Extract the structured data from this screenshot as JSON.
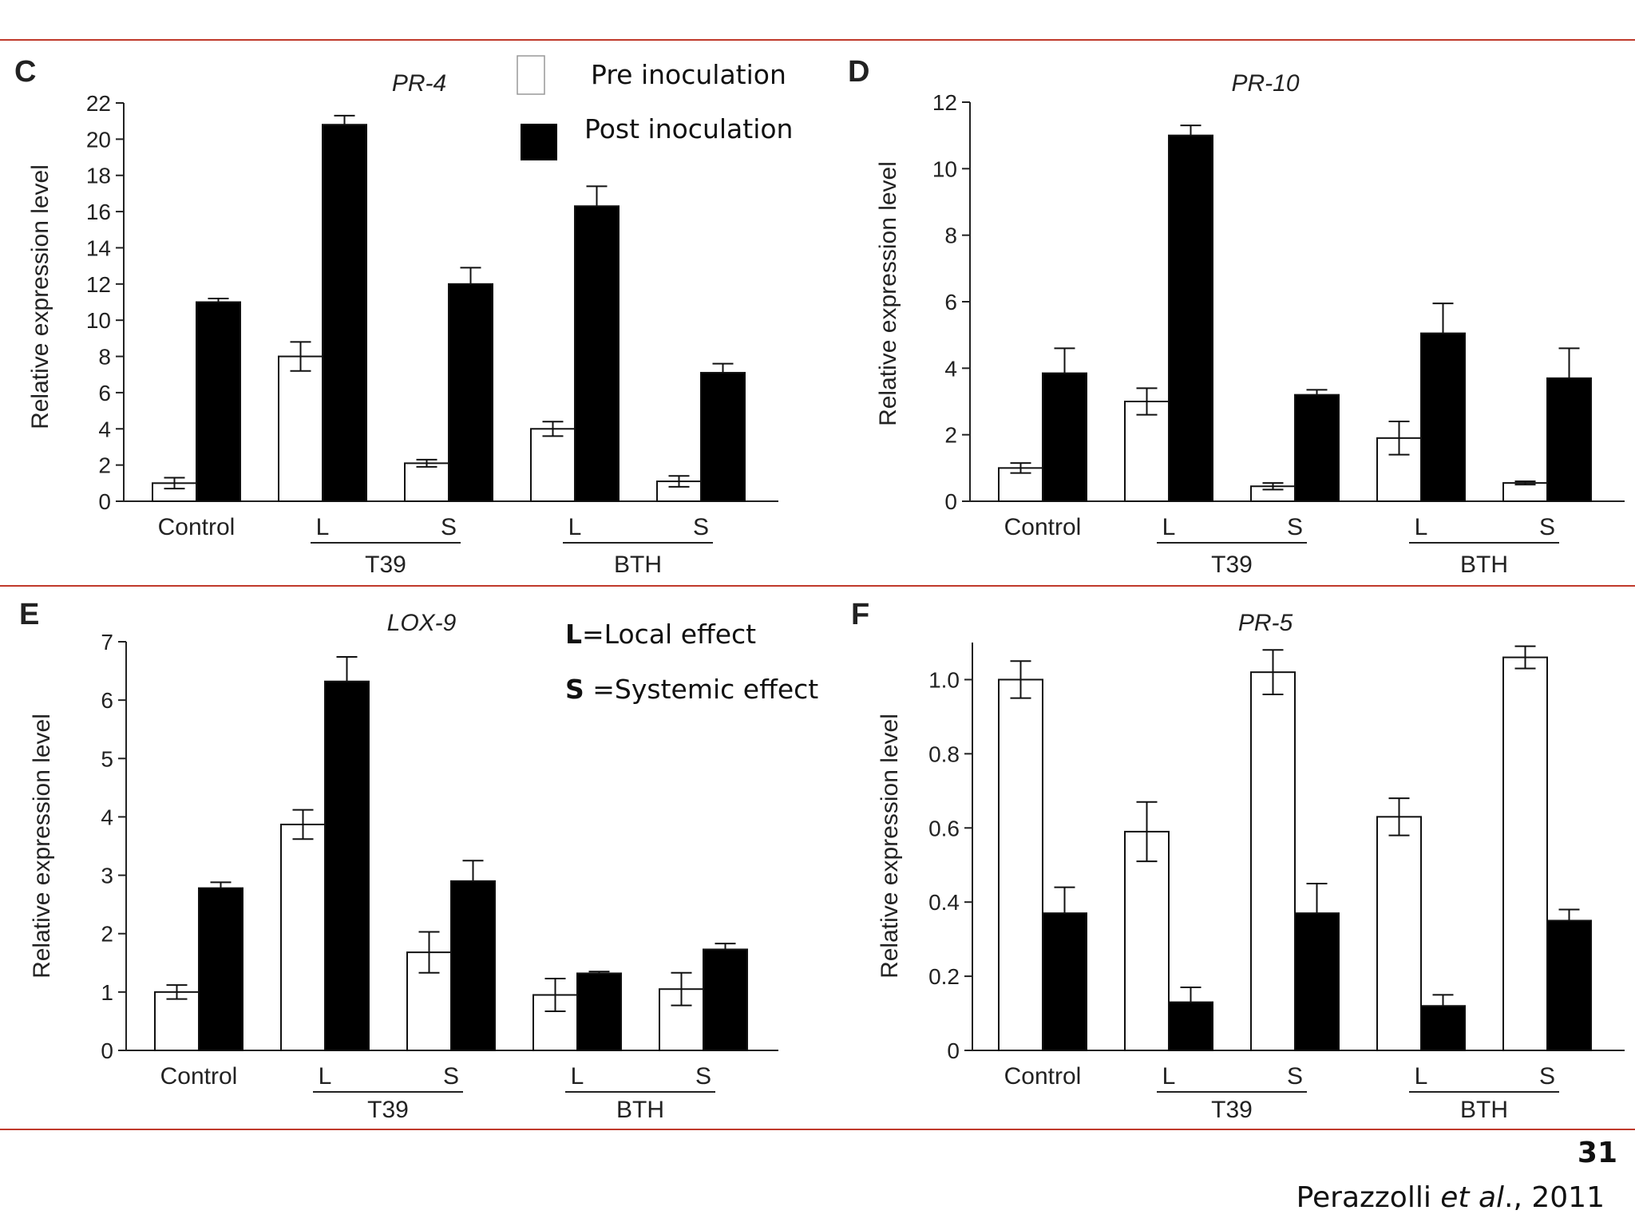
{
  "slide": {
    "page_number": "31",
    "citation_author": "Perazzolli ",
    "citation_etal": "et al",
    "citation_year": "., 2011"
  },
  "legend": {
    "pre_label": "Pre inoculation",
    "post_label": "Post inoculation"
  },
  "note": {
    "l_letter": "L",
    "l_text": "=Local effect",
    "s_letter": "S",
    "s_text": " =Systemic effect"
  },
  "colors": {
    "pre": "#ffffff",
    "post": "#000000",
    "rule": "#c0392b"
  },
  "chart_data": [
    {
      "type": "bar",
      "panel": "C",
      "title": "PR-4",
      "ylabel": "Relative expression level",
      "ylim": [
        0,
        22
      ],
      "yticks": [
        0,
        2,
        4,
        6,
        8,
        10,
        12,
        14,
        16,
        18,
        20,
        22
      ],
      "ytick_labels": [
        "0",
        "2",
        "4",
        "6",
        "8",
        "10",
        "12",
        "14",
        "16",
        "18",
        "20",
        "22"
      ],
      "categories": [
        "Control",
        "L",
        "S",
        "L",
        "S"
      ],
      "groups": [
        {
          "label": "T39",
          "from": 1,
          "to": 2
        },
        {
          "label": "BTH",
          "from": 3,
          "to": 4
        }
      ],
      "series": [
        {
          "values": [
            1.0,
            8.0,
            2.1,
            4.0,
            1.1
          ],
          "errors": [
            0.3,
            0.8,
            0.2,
            0.4,
            0.3
          ]
        },
        {
          "values": [
            11.0,
            20.8,
            12.0,
            16.3,
            7.1
          ],
          "errors": [
            0.2,
            0.5,
            0.9,
            1.1,
            0.5
          ]
        }
      ]
    },
    {
      "type": "bar",
      "panel": "D",
      "title": "PR-10",
      "ylabel": "Relative expression level",
      "ylim": [
        0,
        12
      ],
      "yticks": [
        0,
        2,
        4,
        6,
        8,
        10,
        12
      ],
      "ytick_labels": [
        "0",
        "2",
        "4",
        "6",
        "8",
        "10",
        "12"
      ],
      "categories": [
        "Control",
        "L",
        "S",
        "L",
        "S"
      ],
      "groups": [
        {
          "label": "T39",
          "from": 1,
          "to": 2
        },
        {
          "label": "BTH",
          "from": 3,
          "to": 4
        }
      ],
      "series": [
        {
          "values": [
            1.0,
            3.0,
            0.45,
            1.9,
            0.55
          ],
          "errors": [
            0.15,
            0.4,
            0.1,
            0.5,
            0.05
          ]
        },
        {
          "values": [
            3.85,
            11.0,
            3.2,
            5.05,
            3.7
          ],
          "errors": [
            0.75,
            0.3,
            0.15,
            0.9,
            0.9
          ]
        }
      ]
    },
    {
      "type": "bar",
      "panel": "E",
      "title": "LOX-9",
      "ylabel": "Relative expression level",
      "ylim": [
        0,
        7
      ],
      "yticks": [
        0,
        1,
        2,
        3,
        4,
        5,
        6,
        7
      ],
      "ytick_labels": [
        "0",
        "1",
        "2",
        "3",
        "4",
        "5",
        "6",
        "7"
      ],
      "categories": [
        "Control",
        "L",
        "S",
        "L",
        "S"
      ],
      "groups": [
        {
          "label": "T39",
          "from": 1,
          "to": 2
        },
        {
          "label": "BTH",
          "from": 3,
          "to": 4
        }
      ],
      "series": [
        {
          "values": [
            1.0,
            3.87,
            1.68,
            0.95,
            1.05
          ],
          "errors": [
            0.12,
            0.25,
            0.35,
            0.28,
            0.28
          ]
        },
        {
          "values": [
            2.78,
            6.32,
            2.9,
            1.32,
            1.73
          ],
          "errors": [
            0.1,
            0.42,
            0.35,
            0.03,
            0.1
          ]
        }
      ]
    },
    {
      "type": "bar",
      "panel": "F",
      "title": "PR-5",
      "ylabel": "Relative expression level",
      "ylim": [
        0,
        1.1
      ],
      "yticks": [
        0,
        0.2,
        0.4,
        0.6,
        0.8,
        1.0
      ],
      "ytick_labels": [
        "0",
        "0.2",
        "0.4",
        "0.6",
        "0.8",
        "1.0"
      ],
      "categories": [
        "Control",
        "L",
        "S",
        "L",
        "S"
      ],
      "groups": [
        {
          "label": "T39",
          "from": 1,
          "to": 2
        },
        {
          "label": "BTH",
          "from": 3,
          "to": 4
        }
      ],
      "series": [
        {
          "values": [
            1.0,
            0.59,
            1.02,
            0.63,
            1.06
          ],
          "errors": [
            0.05,
            0.08,
            0.06,
            0.05,
            0.03
          ]
        },
        {
          "values": [
            0.37,
            0.13,
            0.37,
            0.12,
            0.35
          ],
          "errors": [
            0.07,
            0.04,
            0.08,
            0.03,
            0.03
          ]
        }
      ]
    }
  ]
}
